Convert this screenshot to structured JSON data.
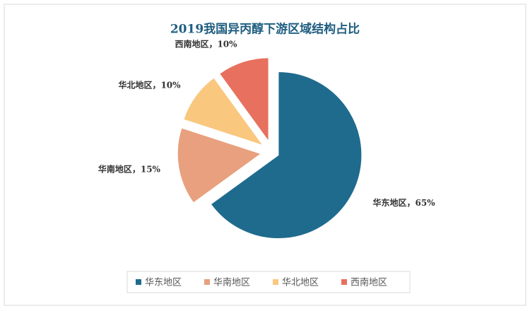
{
  "chart_data": {
    "type": "pie",
    "title": "2019我国异丙醇下游区域结构占比",
    "categories": [
      "华东地区",
      "华南地区",
      "华北地区",
      "西南地区"
    ],
    "values": [
      65,
      15,
      10,
      10
    ],
    "value_labels": [
      "华东地区，65%",
      "华南地区，15%",
      "华北地区，10%",
      "西南地区，10%"
    ],
    "colors": [
      "#1f6b8e",
      "#e8a07e",
      "#f9c77e",
      "#e8705e"
    ],
    "legend": "bottom"
  }
}
